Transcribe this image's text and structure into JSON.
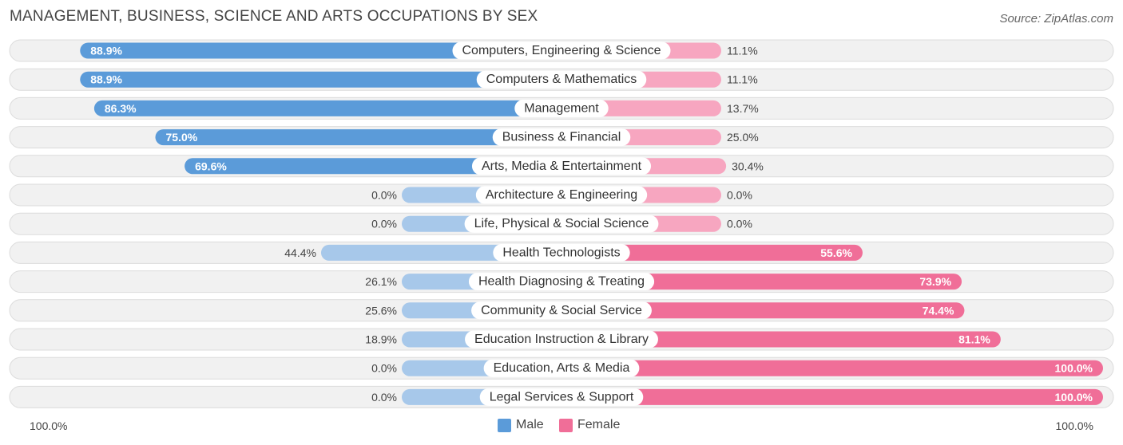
{
  "header": {
    "title": "MANAGEMENT, BUSINESS, SCIENCE AND ARTS OCCUPATIONS BY SEX",
    "source": "Source: ZipAtlas.com"
  },
  "colors": {
    "male_strong": "#5b9bd9",
    "male_light": "#a7c8ea",
    "female_strong": "#f06e98",
    "female_light": "#f7a6c0",
    "row_bg": "#f1f1f1",
    "row_border": "#dcdcdc"
  },
  "legend": {
    "male": "Male",
    "female": "Female"
  },
  "axis": {
    "left_label": "100.0%",
    "right_label": "100.0%"
  },
  "chart_data": {
    "type": "bar",
    "orientation": "horizontal-diverging",
    "title": "MANAGEMENT, BUSINESS, SCIENCE AND ARTS OCCUPATIONS BY SEX",
    "xlim": [
      -100,
      100
    ],
    "categories": [
      "Computers, Engineering & Science",
      "Computers & Mathematics",
      "Management",
      "Business & Financial",
      "Arts, Media & Entertainment",
      "Architecture & Engineering",
      "Life, Physical & Social Science",
      "Health Technologists",
      "Health Diagnosing & Treating",
      "Community & Social Service",
      "Education Instruction & Library",
      "Education, Arts & Media",
      "Legal Services & Support"
    ],
    "series": [
      {
        "name": "Male",
        "values": [
          88.9,
          88.9,
          86.3,
          75.0,
          69.6,
          0.0,
          0.0,
          44.4,
          26.1,
          25.6,
          18.9,
          0.0,
          0.0
        ],
        "labels": [
          "88.9%",
          "88.9%",
          "86.3%",
          "75.0%",
          "69.6%",
          "0.0%",
          "0.0%",
          "44.4%",
          "26.1%",
          "25.6%",
          "18.9%",
          "0.0%",
          "0.0%"
        ]
      },
      {
        "name": "Female",
        "values": [
          11.1,
          11.1,
          13.7,
          25.0,
          30.4,
          0.0,
          0.0,
          55.6,
          73.9,
          74.4,
          81.1,
          100.0,
          100.0
        ],
        "labels": [
          "11.1%",
          "11.1%",
          "13.7%",
          "25.0%",
          "30.4%",
          "0.0%",
          "0.0%",
          "55.6%",
          "73.9%",
          "74.4%",
          "81.1%",
          "100.0%",
          "100.0%"
        ]
      }
    ]
  }
}
